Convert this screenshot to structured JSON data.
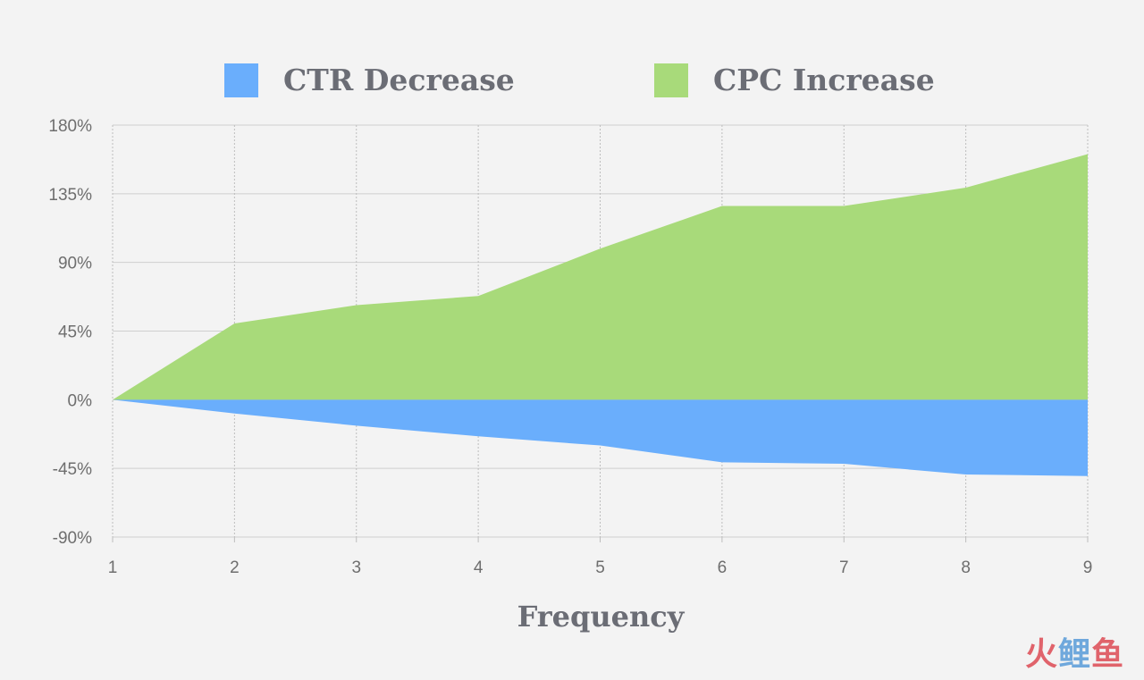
{
  "chart_data": {
    "type": "area",
    "title": "",
    "xlabel": "Frequency",
    "ylabel": "",
    "x": [
      1,
      2,
      3,
      4,
      5,
      6,
      7,
      8,
      9
    ],
    "ylim": [
      -90,
      180
    ],
    "yticks": [
      180,
      135,
      90,
      45,
      0,
      -45,
      -90
    ],
    "ytick_labels": [
      "180%",
      "135%",
      "90%",
      "45%",
      "0%",
      "-45%",
      "-90%"
    ],
    "xtick_labels": [
      "1",
      "2",
      "3",
      "4",
      "5",
      "6",
      "7",
      "8",
      "9"
    ],
    "grid": true,
    "legend_position": "top",
    "series": [
      {
        "name": "CPC Increase",
        "color": "#a8da7a",
        "values": [
          0,
          50,
          62,
          68,
          99,
          127,
          127,
          139,
          161
        ]
      },
      {
        "name": "CTR Decrease",
        "color": "#6aaefc",
        "values": [
          0,
          -9,
          -17,
          -24,
          -30,
          -41,
          -42,
          -49,
          -50
        ]
      }
    ]
  },
  "legend": {
    "items": [
      {
        "label": "CTR Decrease",
        "color": "#6aaefc"
      },
      {
        "label": "CPC Increase",
        "color": "#a8da7a"
      }
    ]
  },
  "watermark": {
    "part1": "火",
    "part2": "鲤",
    "part3": "鱼"
  }
}
